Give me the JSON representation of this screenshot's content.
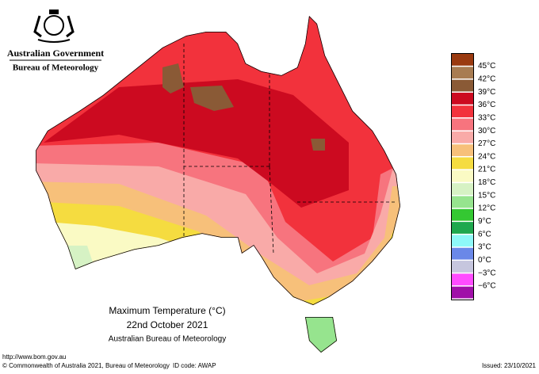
{
  "header": {
    "agency": "Australian Government",
    "bureau": "Bureau of Meteorology"
  },
  "map": {
    "title": "Maximum Temperature (°C)",
    "date": "22nd October 2021",
    "source": "Australian Bureau of Meteorology"
  },
  "legend": {
    "colors": [
      "#9a3a10",
      "#a87c52",
      "#8a5a36",
      "#cc0a20",
      "#f2323c",
      "#f7747e",
      "#f9aaa8",
      "#f7c07a",
      "#f5dc40",
      "#fafac4",
      "#d6f2c4",
      "#96e48e",
      "#34c832",
      "#1fa84e",
      "#8ef8f8",
      "#6a88e8",
      "#c6c6de",
      "#ff4cff",
      "#a010a8"
    ],
    "labels": [
      "45°C",
      "42°C",
      "39°C",
      "36°C",
      "33°C",
      "30°C",
      "27°C",
      "24°C",
      "21°C",
      "18°C",
      "15°C",
      "12°C",
      "9°C",
      "6°C",
      "3°C",
      "0°C",
      "−3°C",
      "−6°C"
    ]
  },
  "footer": {
    "url": "http://www.bom.gov.au",
    "copyright": "© Commonwealth of Australia 2021, Bureau of Meteorology",
    "id": "ID code: AWAP",
    "issued": "Issued: 23/10/2021"
  }
}
